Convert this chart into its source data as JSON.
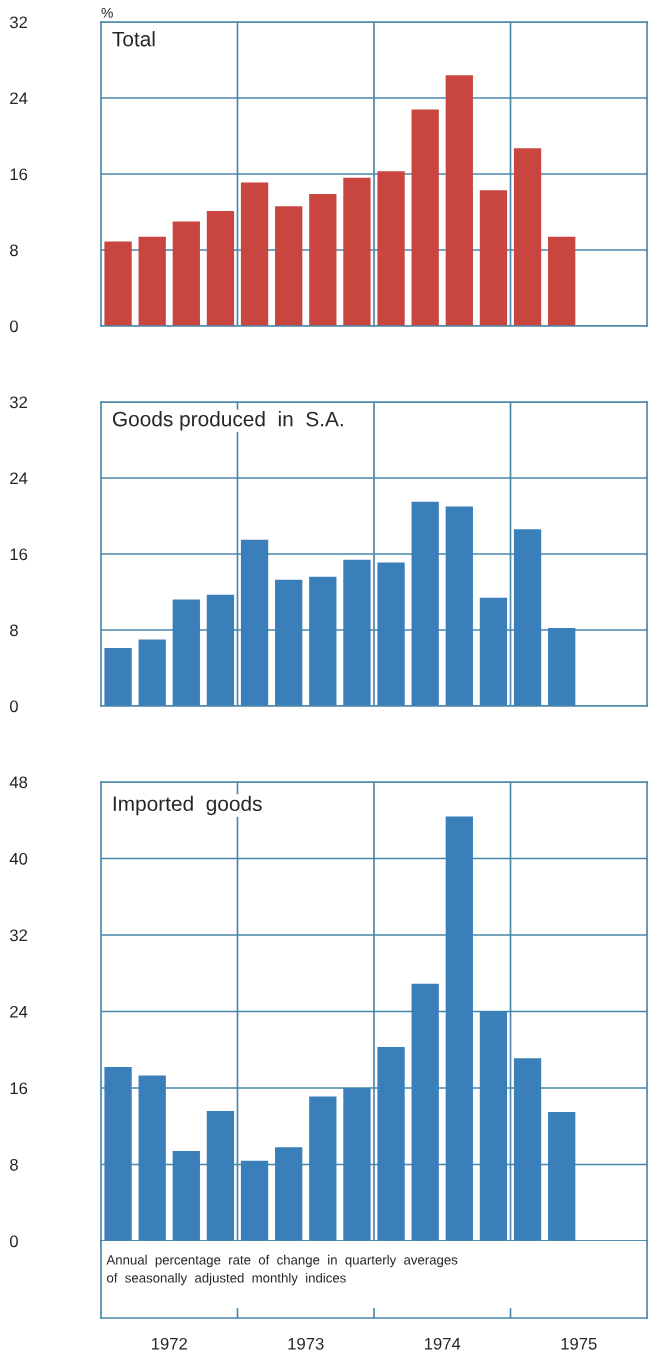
{
  "chart_data": [
    {
      "type": "bar",
      "title": "Total",
      "ylabel": "%",
      "color": "#c8463f",
      "x": [
        1972.125,
        1972.375,
        1972.625,
        1972.875,
        1973.125,
        1973.375,
        1973.625,
        1973.875,
        1974.125,
        1974.375,
        1974.625,
        1974.875,
        1975.125,
        1975.375
      ],
      "values": [
        8.9,
        9.4,
        11.0,
        12.1,
        15.1,
        12.6,
        13.9,
        15.6,
        16.3,
        22.8,
        26.4,
        14.3,
        18.7,
        9.4
      ],
      "xlim": [
        1972,
        1976
      ],
      "ylim": [
        0,
        32
      ],
      "yticks": [
        0,
        8,
        16,
        24,
        32
      ],
      "grid": "y",
      "tick_labels": "y",
      "ref_lines": [
        {
          "axis": "x",
          "value": 1973,
          "color": "#4a86a8"
        },
        {
          "axis": "x",
          "value": 1974,
          "color": "#4a86a8"
        },
        {
          "axis": "x",
          "value": 1975,
          "color": "#4a86a8"
        }
      ]
    },
    {
      "type": "bar",
      "title": "Goods produced  in  S.A.",
      "color": "#3a7fba",
      "x": [
        1972.125,
        1972.375,
        1972.625,
        1972.875,
        1973.125,
        1973.375,
        1973.625,
        1973.875,
        1974.125,
        1974.375,
        1974.625,
        1974.875,
        1975.125,
        1975.375
      ],
      "values": [
        6.1,
        7.0,
        11.2,
        11.7,
        17.5,
        13.3,
        13.6,
        15.4,
        15.1,
        21.5,
        21.0,
        11.4,
        18.6,
        8.2
      ],
      "xlim": [
        1972,
        1976
      ],
      "ylim": [
        0,
        32
      ],
      "yticks": [
        0,
        8,
        16,
        24,
        32
      ],
      "grid": "y",
      "tick_labels": "y",
      "ref_lines": [
        {
          "axis": "x",
          "value": 1973,
          "color": "#4a86a8"
        },
        {
          "axis": "x",
          "value": 1974,
          "color": "#4a86a8"
        },
        {
          "axis": "x",
          "value": 1975,
          "color": "#4a86a8"
        }
      ]
    },
    {
      "type": "bar",
      "title": "Imported  goods",
      "color": "#3a7fba",
      "x": [
        1972.125,
        1972.375,
        1972.625,
        1972.875,
        1973.125,
        1973.375,
        1973.625,
        1973.875,
        1974.125,
        1974.375,
        1974.625,
        1974.875,
        1975.125,
        1975.375
      ],
      "values": [
        18.2,
        17.3,
        9.4,
        13.6,
        8.4,
        9.8,
        15.1,
        16.0,
        20.3,
        26.9,
        44.4,
        24.0,
        19.1,
        13.5
      ],
      "xlim": [
        1972,
        1976
      ],
      "xticks": [
        {
          "value": 1972.5,
          "label": "1972"
        },
        {
          "value": 1973.5,
          "label": "1973"
        },
        {
          "value": 1974.5,
          "label": "1974"
        },
        {
          "value": 1975.5,
          "label": "1975"
        }
      ],
      "ylim": [
        0,
        48
      ],
      "yticks": [
        0,
        8,
        16,
        24,
        32,
        40,
        48
      ],
      "grid": "y",
      "ref_lines": [
        {
          "axis": "x",
          "value": 1973,
          "color": "#4a86a8"
        },
        {
          "axis": "x",
          "value": 1974,
          "color": "#4a86a8"
        },
        {
          "axis": "x",
          "value": 1975,
          "color": "#4a86a8"
        }
      ],
      "annotations": [
        "Annual  percentage  rate  of  change  in  quarterly  averages\nof  seasonally  adjusted  monthly  indices"
      ]
    }
  ]
}
